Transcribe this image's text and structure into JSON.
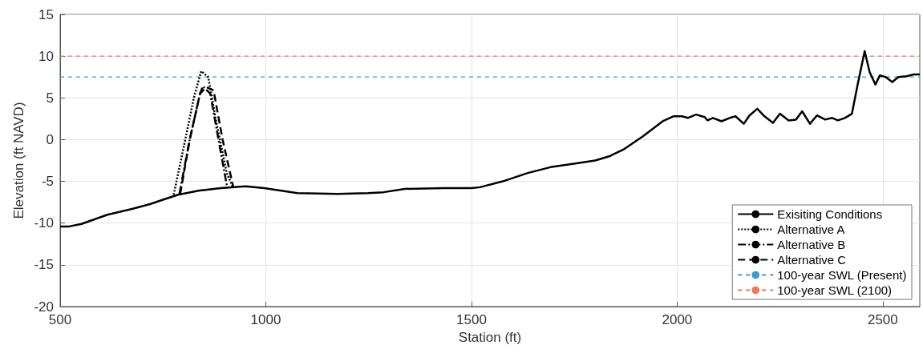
{
  "chart_data": {
    "type": "line",
    "xlabel": "Station (ft)",
    "ylabel": "Elevation (ft NAVD)",
    "xlim": [
      500,
      2590
    ],
    "xticks": [
      500,
      1000,
      1500,
      2000,
      2500
    ],
    "ylim": [
      -20,
      15
    ],
    "yticks": [
      -20,
      -15,
      -10,
      -5,
      0,
      5,
      10,
      15
    ],
    "grid": true,
    "legend": "bottom right",
    "marker": "none",
    "series": [
      {
        "name": "Exisiting Conditions",
        "color": "#000000",
        "line_style": "solid",
        "x": [
          500,
          522,
          552,
          615,
          675,
          720,
          750,
          787,
          839,
          891,
          951,
          996,
          1077,
          1174,
          1249,
          1286,
          1338,
          1435,
          1500,
          1521,
          1576,
          1637,
          1692,
          1746,
          1801,
          1835,
          1869,
          1917,
          1965,
          1992,
          2012,
          2026,
          2046,
          2067,
          2074,
          2087,
          2108,
          2128,
          2142,
          2162,
          2176,
          2195,
          2210,
          2233,
          2250,
          2271,
          2289,
          2304,
          2323,
          2340,
          2360,
          2377,
          2391,
          2408,
          2425,
          2439,
          2456,
          2468,
          2482,
          2493,
          2507,
          2523,
          2538,
          2558,
          2575,
          2590
        ],
        "values": [
          -10.4,
          -10.4,
          -10.1,
          -9.0,
          -8.3,
          -7.7,
          -7.2,
          -6.6,
          -6.1,
          -5.8,
          -5.6,
          -5.8,
          -6.4,
          -6.5,
          -6.4,
          -6.3,
          -5.9,
          -5.8,
          -5.8,
          -5.7,
          -5.0,
          -4.0,
          -3.3,
          -2.9,
          -2.5,
          -2.0,
          -1.2,
          0.4,
          2.2,
          2.8,
          2.8,
          2.6,
          3.0,
          2.7,
          2.3,
          2.6,
          2.2,
          2.6,
          2.8,
          1.9,
          2.9,
          3.7,
          2.9,
          2.0,
          3.1,
          2.3,
          2.4,
          3.4,
          1.9,
          2.9,
          2.4,
          2.6,
          2.3,
          2.6,
          3.1,
          6.6,
          10.6,
          8.1,
          6.6,
          7.7,
          7.5,
          6.9,
          7.5,
          7.6,
          7.8,
          7.8
        ]
      },
      {
        "name": "Alternative A",
        "color": "#000000",
        "line_style": "dotted",
        "x": [
          776,
          800,
          825,
          843,
          860,
          880,
          905,
          920
        ],
        "values": [
          -6.6,
          -1,
          5,
          8.2,
          7.5,
          2,
          -4,
          -5.7
        ]
      },
      {
        "name": "Alternative B",
        "color": "#000000",
        "line_style": "dashdot",
        "x": [
          790,
          815,
          840,
          847,
          865,
          885,
          906
        ],
        "values": [
          -6.5,
          0,
          5.5,
          6.4,
          5.5,
          0,
          -5.7
        ]
      },
      {
        "name": "Alternative C",
        "color": "#000000",
        "line_style": "dashed",
        "x": [
          792,
          815,
          840,
          855,
          873,
          895,
          921
        ],
        "values": [
          -6.5,
          0,
          5.5,
          6.3,
          5.9,
          0,
          -5.7
        ]
      }
    ],
    "ref_lines": [
      {
        "axis": "y",
        "value": 7.5,
        "label": "100-year SWL (Present)",
        "color": "#3b9ad8",
        "line_style": "dashed"
      },
      {
        "axis": "y",
        "value": 10,
        "label": "100-year SWL (2100)",
        "color": "#ee7a50",
        "line_style": "dashed"
      }
    ]
  }
}
